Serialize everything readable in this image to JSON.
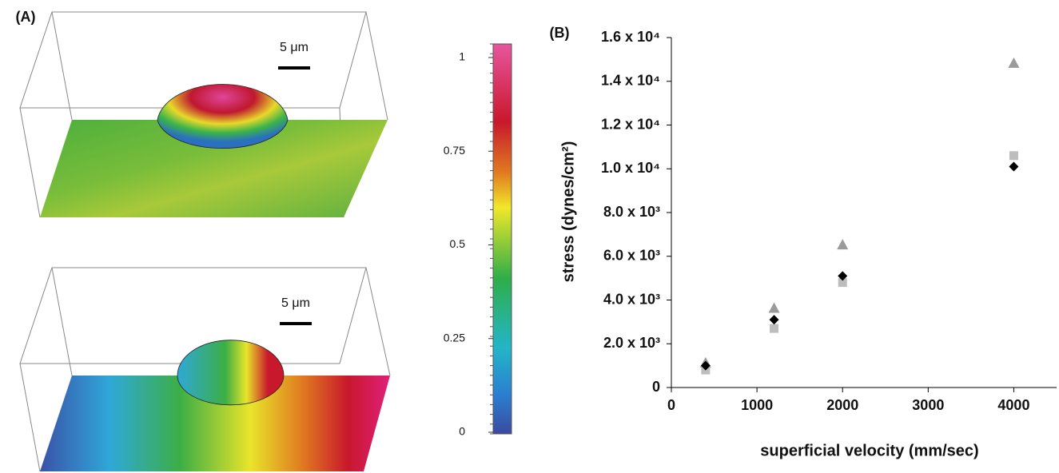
{
  "panel_a": {
    "label": "(A)",
    "scale_bars": [
      "5 μm",
      "5 μm"
    ],
    "colorbar": {
      "lim": [
        0,
        1
      ],
      "ticks": [
        0,
        0.25,
        0.5,
        0.75,
        1
      ]
    }
  },
  "chart_data": {
    "type": "scatter",
    "panel_label": "(B)",
    "x_label": "superficial velocity (mm/sec)",
    "y_label": "stress (dynes/cm²)",
    "x": [
      400,
      1200,
      2000,
      4000
    ],
    "series": [
      {
        "marker": "triangle",
        "color": "#9a9a9a",
        "values": [
          1100,
          3600,
          6500,
          14800
        ]
      },
      {
        "marker": "square",
        "color": "#bdbdbd",
        "values": [
          800,
          2700,
          4800,
          10600
        ]
      },
      {
        "marker": "diamond",
        "color": "#000000",
        "values": [
          1000,
          3100,
          5100,
          10100
        ]
      }
    ],
    "xlim": [
      0,
      4500
    ],
    "xticks": [
      0,
      1000,
      2000,
      3000,
      4000
    ],
    "ylim": [
      0,
      16000
    ],
    "yticks": [
      0,
      {
        "value": 2000,
        "label": "2.0 x 10³"
      },
      {
        "value": 4000,
        "label": "4.0 x 10³"
      },
      {
        "value": 6000,
        "label": "6.0 x 10³"
      },
      {
        "value": 8000,
        "label": "8.0 x 10³"
      },
      {
        "value": 10000,
        "label": "1.0 x 10⁴"
      },
      {
        "value": 12000,
        "label": "1.2 x 10⁴"
      },
      {
        "value": 14000,
        "label": "1.4 x 10⁴"
      },
      {
        "value": 16000,
        "label": "1.6 x 10⁴"
      }
    ],
    "grid": false
  }
}
